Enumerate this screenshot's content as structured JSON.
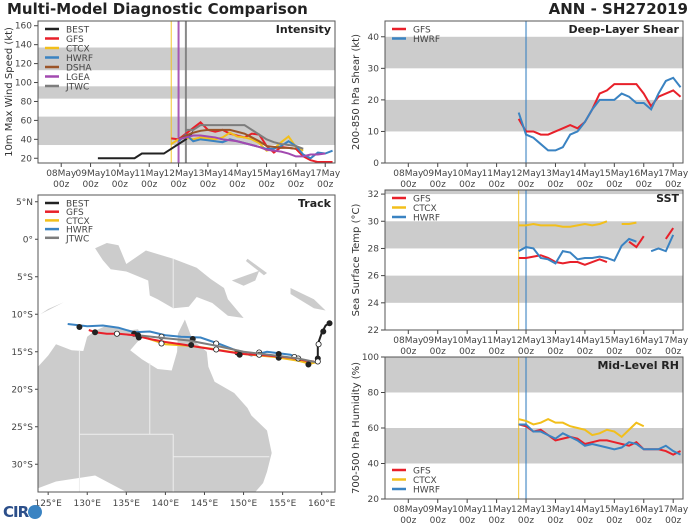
{
  "header": {
    "title": "Multi-Model Diagnostic Comparison",
    "storm_id": "ANN - SH272019"
  },
  "logo": {
    "text": "CIRA"
  },
  "colors": {
    "BEST": "#222222",
    "GFS": "#e8202a",
    "CTCX": "#f2bf1b",
    "HWRF": "#3a83c2",
    "DSHA": "#9b5428",
    "LGEA": "#a24ab0",
    "JTWC": "#7d7d7d",
    "band": "#cccccc",
    "land": "#cccccc"
  },
  "chart_data": [
    {
      "id": "intensity",
      "type": "line",
      "title": "Intensity",
      "ylabel": "10m Max Wind Speed (kt)",
      "xlim": [
        "2019-05-07T05",
        "2019-05-17T08"
      ],
      "ylim": [
        15,
        165
      ],
      "yticks": [
        20,
        40,
        60,
        80,
        100,
        120,
        140,
        160
      ],
      "xticks": [
        {
          "t": "2019-05-08T00",
          "l1": "08May",
          "l2": "00z"
        },
        {
          "t": "2019-05-09T00",
          "l1": "09May",
          "l2": "00z"
        },
        {
          "t": "2019-05-10T00",
          "l1": "10May",
          "l2": "00z"
        },
        {
          "t": "2019-05-11T00",
          "l1": "11May",
          "l2": "00z"
        },
        {
          "t": "2019-05-12T00",
          "l1": "12May",
          "l2": "00z"
        },
        {
          "t": "2019-05-13T00",
          "l1": "13May",
          "l2": "00z"
        },
        {
          "t": "2019-05-14T00",
          "l1": "14May",
          "l2": "00z"
        },
        {
          "t": "2019-05-15T00",
          "l1": "15May",
          "l2": "00z"
        },
        {
          "t": "2019-05-16T00",
          "l1": "16May",
          "l2": "00z"
        },
        {
          "t": "2019-05-17T00",
          "l1": "17May",
          "l2": "00z"
        }
      ],
      "bands": [
        [
          34,
          64
        ],
        [
          83,
          96
        ],
        [
          113,
          137
        ]
      ],
      "vlines": [
        {
          "t": "2019-05-11T18",
          "model": "CTCX"
        },
        {
          "t": "2019-05-12T00",
          "model": "LGEA"
        },
        {
          "t": "2019-05-12T06",
          "model": "JTWC"
        }
      ],
      "legend": {
        "placement": "top-left",
        "entries": [
          "BEST",
          "GFS",
          "CTCX",
          "HWRF",
          "DSHA",
          "LGEA",
          "JTWC"
        ]
      },
      "series": [
        {
          "name": "BEST",
          "start": "2019-05-09T06",
          "values": [
            20,
            20,
            20,
            20,
            20,
            20,
            25,
            25,
            25,
            25,
            30,
            35,
            40,
            48
          ]
        },
        {
          "name": "GFS",
          "start": "2019-05-11T18",
          "values": [
            41,
            40,
            46,
            52,
            58,
            50,
            48,
            50,
            46,
            44,
            42,
            46,
            45,
            33,
            26,
            32,
            31,
            30,
            22,
            18,
            16,
            16,
            16
          ]
        },
        {
          "name": "CTCX",
          "start": "2019-05-11T18",
          "values": [
            35,
            40,
            42,
            40,
            42,
            41,
            40,
            42,
            47,
            43,
            42,
            40,
            36,
            28,
            30,
            37,
            43,
            32,
            28
          ]
        },
        {
          "name": "HWRF",
          "start": "2019-05-12T00",
          "values": [
            38,
            45,
            38,
            40,
            39,
            38,
            37,
            40,
            38,
            36,
            34,
            32,
            30,
            30,
            33,
            38,
            33,
            24,
            20,
            26,
            25,
            28
          ]
        },
        {
          "name": "DSHA",
          "start": "2019-05-12T00",
          "values": [
            40,
            44,
            47,
            49,
            50,
            50,
            50,
            50,
            48,
            46,
            42,
            38,
            33,
            32,
            31,
            31,
            30
          ]
        },
        {
          "name": "LGEA",
          "start": "2019-05-12T00",
          "values": [
            40,
            42,
            44,
            44,
            43,
            42,
            40,
            39,
            38,
            36,
            34,
            32,
            29,
            28,
            27,
            25,
            22,
            22,
            24,
            24,
            25
          ]
        },
        {
          "name": "JTWC",
          "start": "2019-05-12T06",
          "values": [
            50,
            50,
            55,
            55,
            55,
            55,
            55,
            55,
            55,
            50,
            45,
            40,
            37,
            35,
            34,
            33,
            30
          ]
        }
      ]
    },
    {
      "id": "shear",
      "type": "line",
      "title": "Deep-Layer Shear",
      "ylabel": "200-850 hPa Shear (kt)",
      "xlim": [
        "2019-05-07T05",
        "2019-05-17T08"
      ],
      "ylim": [
        0,
        45
      ],
      "yticks": [
        0,
        10,
        20,
        30,
        40
      ],
      "bands": [
        [
          10,
          20
        ],
        [
          30,
          40
        ]
      ],
      "vlines": [
        {
          "t": "2019-05-12T00",
          "model": "HWRF"
        }
      ],
      "legend": {
        "placement": "top-left",
        "entries": [
          "GFS",
          "HWRF"
        ]
      },
      "series": [
        {
          "name": "GFS",
          "start": "2019-05-11T18",
          "values": [
            14,
            10,
            10,
            9,
            9,
            10,
            11,
            12,
            11,
            13,
            17,
            22,
            23,
            25,
            25,
            25,
            25,
            22,
            18,
            21,
            22,
            23,
            21
          ]
        },
        {
          "name": "HWRF",
          "start": "2019-05-11T18",
          "values": [
            16,
            9,
            8,
            6,
            4,
            4,
            5,
            9,
            10,
            13,
            17,
            20,
            20,
            20,
            22,
            21,
            19,
            19,
            17,
            22,
            26,
            27,
            24
          ]
        }
      ]
    },
    {
      "id": "sst",
      "type": "line",
      "title": "SST",
      "ylabel": "Sea Surface Temp (°C)",
      "xlim": [
        "2019-05-07T05",
        "2019-05-17T08"
      ],
      "ylim": [
        22,
        32.3
      ],
      "yticks": [
        22,
        24,
        26,
        28,
        30,
        32
      ],
      "bands": [
        [
          24,
          26
        ],
        [
          28,
          30
        ],
        [
          32,
          34
        ]
      ],
      "vlines": [
        {
          "t": "2019-05-11T18",
          "model": "CTCX"
        },
        {
          "t": "2019-05-12T00",
          "model": "HWRF"
        }
      ],
      "legend": {
        "placement": "top-left",
        "entries": [
          "GFS",
          "CTCX",
          "HWRF"
        ]
      },
      "series": [
        {
          "name": "CTCX",
          "start": "2019-05-11T18",
          "values": [
            29.7,
            29.7,
            29.8,
            29.7,
            29.7,
            29.7,
            29.6,
            29.6,
            29.7,
            29.8,
            29.7,
            29.8,
            30.0,
            null,
            29.8,
            29.8,
            29.9
          ]
        },
        {
          "name": "GFS",
          "start": "2019-05-11T18",
          "values": [
            27.3,
            27.3,
            27.4,
            27.5,
            27.3,
            27.0,
            26.9,
            27.0,
            27.0,
            26.8,
            27.0,
            27.2,
            27.0,
            null,
            null,
            28.5,
            28.1,
            28.9,
            null,
            null,
            28.7,
            29.5
          ]
        },
        {
          "name": "HWRF",
          "start": "2019-05-11T18",
          "values": [
            27.8,
            28.1,
            28.0,
            27.3,
            27.2,
            26.9,
            27.8,
            27.7,
            27.2,
            27.3,
            27.3,
            27.4,
            27.3,
            27.1,
            28.2,
            28.7,
            28.5,
            null,
            27.8,
            28.0,
            27.8,
            29.0
          ]
        }
      ]
    },
    {
      "id": "rh",
      "type": "line",
      "title": "Mid-Level RH",
      "ylabel": "700-500 hPa Humidity (%)",
      "xlim": [
        "2019-05-07T05",
        "2019-05-17T08"
      ],
      "ylim": [
        20,
        100
      ],
      "yticks": [
        20,
        40,
        60,
        80,
        100
      ],
      "bands": [
        [
          40,
          60
        ],
        [
          80,
          100
        ]
      ],
      "vlines": [
        {
          "t": "2019-05-11T18",
          "model": "CTCX"
        },
        {
          "t": "2019-05-12T00",
          "model": "HWRF"
        }
      ],
      "legend": {
        "placement": "bottom-left",
        "entries": [
          "GFS",
          "CTCX",
          "HWRF"
        ]
      },
      "series": [
        {
          "name": "GFS",
          "start": "2019-05-11T18",
          "values": [
            62,
            61,
            58,
            59,
            56,
            53,
            54,
            55,
            54,
            51,
            52,
            53,
            53,
            52,
            51,
            50,
            52,
            48,
            48,
            48,
            47,
            45,
            47
          ]
        },
        {
          "name": "CTCX",
          "start": "2019-05-11T18",
          "values": [
            65,
            64,
            62,
            63,
            65,
            63,
            63,
            61,
            60,
            59,
            56,
            57,
            59,
            58,
            55,
            59,
            63,
            61
          ]
        },
        {
          "name": "HWRF",
          "start": "2019-05-11T18",
          "values": [
            62,
            62,
            58,
            58,
            56,
            54,
            57,
            55,
            53,
            50,
            51,
            50,
            49,
            48,
            49,
            52,
            51,
            48,
            48,
            48,
            50,
            47,
            45
          ]
        }
      ]
    },
    {
      "id": "track",
      "type": "line",
      "title": "Track",
      "xlim": [
        123.7,
        161.7
      ],
      "ylim": [
        -33.7,
        5.9
      ],
      "xticks": [
        {
          "v": 125,
          "l": "125°E"
        },
        {
          "v": 130,
          "l": "130°E"
        },
        {
          "v": 135,
          "l": "135°E"
        },
        {
          "v": 140,
          "l": "140°E"
        },
        {
          "v": 145,
          "l": "145°E"
        },
        {
          "v": 150,
          "l": "150°E"
        },
        {
          "v": 155,
          "l": "155°E"
        },
        {
          "v": 160,
          "l": "160°E"
        }
      ],
      "yticks": [
        {
          "v": 5,
          "l": "5°N"
        },
        {
          "v": 0,
          "l": "0°"
        },
        {
          "v": -5,
          "l": "5°S"
        },
        {
          "v": -10,
          "l": "10°S"
        },
        {
          "v": -15,
          "l": "15°S"
        },
        {
          "v": -20,
          "l": "20°S"
        },
        {
          "v": -25,
          "l": "25°S"
        },
        {
          "v": -30,
          "l": "30°S"
        }
      ],
      "legend": {
        "placement": "top-left",
        "entries": [
          "BEST",
          "GFS",
          "CTCX",
          "HWRF",
          "JTWC"
        ]
      },
      "series": [
        {
          "name": "HWRF",
          "points": [
            [
              127.5,
              -11.3
            ],
            [
              130,
              -11.6
            ],
            [
              132,
              -11.5
            ],
            [
              134,
              -11.8
            ],
            [
              136,
              -12.4
            ],
            [
              138,
              -12.3
            ],
            [
              140,
              -12.8
            ],
            [
              142,
              -13
            ],
            [
              144.5,
              -13.1
            ],
            [
              147,
              -14
            ],
            [
              150,
              -15.2
            ],
            [
              151,
              -15.5
            ],
            [
              153,
              -15
            ],
            [
              156,
              -15.4
            ],
            [
              158,
              -16.3
            ],
            [
              159,
              -16.4
            ]
          ],
          "markers": [
            [
              129,
              -11.7,
              1
            ],
            [
              136,
              -12.6,
              1
            ],
            [
              139.5,
              -13.0,
              0
            ],
            [
              143.5,
              -13.3,
              1
            ],
            [
              146.5,
              -13.9,
              0
            ],
            [
              149.2,
              -15.1,
              1
            ],
            [
              152,
              -15.1,
              0
            ],
            [
              156.5,
              -15.7,
              0
            ]
          ]
        },
        {
          "name": "CTCX",
          "points": [
            [
              136.5,
              -12.8
            ],
            [
              140,
              -14
            ],
            [
              143,
              -14.2
            ],
            [
              146,
              -14.6
            ],
            [
              150,
              -15.3
            ],
            [
              154,
              -15.7
            ],
            [
              157,
              -16.2
            ],
            [
              158.5,
              -16.6
            ],
            [
              159.3,
              -16.4
            ]
          ]
        },
        {
          "name": "GFS",
          "points": [
            [
              130.2,
              -12.1
            ],
            [
              131,
              -12.4
            ],
            [
              132.5,
              -12.6
            ],
            [
              134,
              -12.6
            ],
            [
              136,
              -12.8
            ],
            [
              138,
              -13.3
            ],
            [
              140,
              -13.7
            ],
            [
              142,
              -14
            ],
            [
              145,
              -14.5
            ],
            [
              148,
              -15
            ],
            [
              150,
              -15.3
            ],
            [
              153,
              -15.5
            ],
            [
              156,
              -15.8
            ],
            [
              158,
              -16.2
            ],
            [
              159,
              -16.3
            ]
          ],
          "markers": [
            [
              131,
              -12.4,
              1
            ],
            [
              133.8,
              -12.6,
              0
            ],
            [
              136.6,
              -13.1,
              1
            ],
            [
              139.5,
              -13.9,
              0
            ],
            [
              143.3,
              -14.1,
              1
            ],
            [
              146.5,
              -14.7,
              0
            ],
            [
              149.5,
              -15.4,
              1
            ],
            [
              152,
              -15.4,
              0
            ],
            [
              154.5,
              -15.8,
              1
            ],
            [
              157,
              -15.9,
              0
            ]
          ]
        },
        {
          "name": "JTWC",
          "points": [
            [
              136.5,
              -12.8
            ],
            [
              140,
              -13.2
            ],
            [
              143,
              -13.5
            ],
            [
              146.5,
              -14.2
            ],
            [
              150,
              -15
            ],
            [
              154,
              -15.5
            ],
            [
              157,
              -15.9
            ],
            [
              159.3,
              -16.4
            ]
          ],
          "markers": [
            [
              136.5,
              -12.8,
              1
            ],
            [
              154.5,
              -15.3,
              1
            ],
            [
              158.3,
              -16.7,
              1
            ]
          ]
        },
        {
          "name": "BEST",
          "points": [
            [
              161,
              -11.2
            ],
            [
              160.5,
              -11.5
            ],
            [
              160,
              -12.5
            ],
            [
              159.5,
              -14
            ],
            [
              159.5,
              -15.9
            ],
            [
              159.5,
              -16.2
            ]
          ],
          "markers": [
            [
              161,
              -11.2,
              1
            ],
            [
              160.2,
              -12.3,
              1
            ],
            [
              159.6,
              -14,
              0
            ],
            [
              159.5,
              -15.9,
              1
            ],
            [
              159.5,
              -16.3,
              0
            ]
          ]
        }
      ]
    }
  ]
}
